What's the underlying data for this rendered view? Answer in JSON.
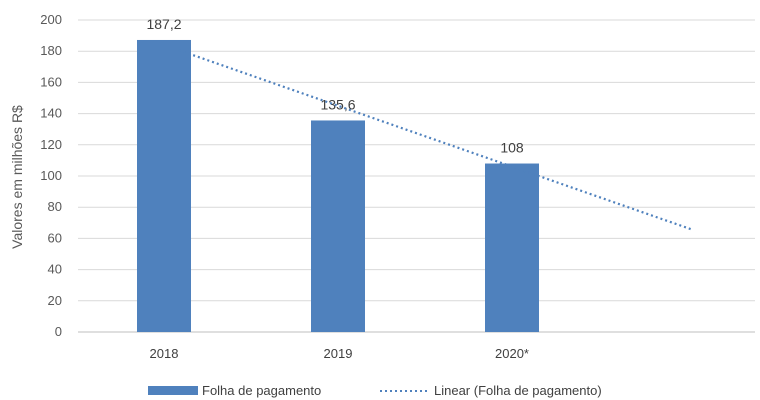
{
  "chart_data": {
    "type": "bar",
    "title": "",
    "xlabel": "",
    "ylabel": "Valores em milhões R$",
    "ylim": [
      0,
      200
    ],
    "ytick_step": 20,
    "yticks": [
      "0",
      "20",
      "40",
      "60",
      "80",
      "100",
      "120",
      "140",
      "160",
      "180",
      "200"
    ],
    "grid": true,
    "categories": [
      "2018",
      "2019",
      "2020*"
    ],
    "series": [
      {
        "name": "Folha de pagamento",
        "values": [
          187.2,
          135.6,
          108
        ],
        "labels": [
          "187,2",
          "135,6",
          "108"
        ],
        "color": "#4f81bd"
      }
    ],
    "trendline": {
      "name": "Linear (Folha de pagamento)",
      "type": "linear",
      "color": "#4f81bd",
      "style": "dotted",
      "forward_periods": 1
    },
    "legend": {
      "position": "bottom"
    }
  }
}
